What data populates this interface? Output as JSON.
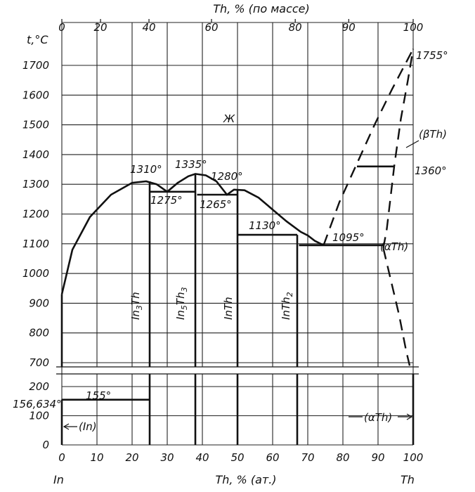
{
  "chart_data": {
    "type": "line",
    "top_axis": {
      "title": "Th, % (по массе)",
      "ticks": [
        0,
        20,
        40,
        60,
        80,
        90,
        100
      ]
    },
    "bottom_axis": {
      "title": "Th, % (ат.)",
      "ticks": [
        0,
        10,
        20,
        30,
        40,
        50,
        60,
        70,
        80,
        90,
        100
      ],
      "left_end_label": "In",
      "right_end_label": "Th"
    },
    "y_axis": {
      "title": "t,°C",
      "upper_ticks": [
        700,
        800,
        900,
        1000,
        1100,
        1200,
        1300,
        1400,
        1500,
        1600,
        1700
      ],
      "lower_ticks": [
        0,
        100,
        200
      ],
      "upper_range": [
        680,
        1760
      ],
      "lower_range": [
        0,
        250
      ]
    },
    "grid": true,
    "liquidus": [
      {
        "name": "",
        "style": "solid",
        "points": [
          [
            0,
            930
          ],
          [
            3,
            1080
          ],
          [
            8,
            1190
          ],
          [
            14,
            1265
          ],
          [
            20,
            1305
          ],
          [
            24,
            1310
          ],
          [
            27,
            1300
          ],
          [
            30,
            1275
          ],
          [
            33,
            1305
          ],
          [
            36,
            1327
          ],
          [
            38,
            1335
          ],
          [
            41,
            1330
          ],
          [
            44,
            1310
          ],
          [
            47,
            1265
          ],
          [
            49,
            1282
          ],
          [
            52,
            1280
          ],
          [
            56,
            1255
          ],
          [
            60,
            1215
          ],
          [
            64,
            1175
          ],
          [
            68,
            1140
          ],
          [
            70,
            1128
          ],
          [
            72,
            1110
          ],
          [
            74.5,
            1095
          ]
        ]
      },
      {
        "name": "",
        "style": "dashed",
        "points": [
          [
            74.5,
            1095
          ],
          [
            79,
            1240
          ],
          [
            84,
            1370
          ],
          [
            89,
            1500
          ],
          [
            94,
            1620
          ],
          [
            100,
            1755
          ]
        ]
      },
      {
        "name": "",
        "style": "dashed",
        "points": [
          [
            91.5,
            1085
          ],
          [
            92.5,
            1150
          ],
          [
            93.5,
            1250
          ],
          [
            94.6,
            1360
          ],
          [
            96.5,
            1520
          ],
          [
            98.5,
            1650
          ],
          [
            100,
            1755
          ]
        ]
      },
      {
        "name": "",
        "style": "dashed",
        "points": [
          [
            91.5,
            1085
          ],
          [
            94,
            960
          ],
          [
            96,
            860
          ],
          [
            98,
            740
          ],
          [
            99,
            690
          ]
        ]
      }
    ],
    "isotherms": [
      {
        "label": "1275°",
        "temperature": 1275,
        "x_range": [
          25,
          38
        ]
      },
      {
        "label": "1265°",
        "temperature": 1265,
        "x_range": [
          38.5,
          50
        ]
      },
      {
        "label": "1130°",
        "temperature": 1130,
        "x_range": [
          50,
          67
        ]
      },
      {
        "label": "1095°",
        "temperature": 1095,
        "x_range": [
          67.5,
          91.5
        ]
      },
      {
        "label": "1360°",
        "temperature": 1360,
        "x_range": [
          84,
          94.6
        ]
      },
      {
        "label": "155°",
        "temperature": 155,
        "x_range": [
          0,
          25
        ]
      }
    ],
    "compounds": [
      {
        "name": "In3Th",
        "x": 25,
        "melting_label": "1310°",
        "melting_point": 1310
      },
      {
        "name": "In5Th3",
        "x": 38,
        "melting_label": "1335°",
        "melting_point": 1335
      },
      {
        "name": "InTh",
        "x": 50,
        "melting_label": "1280°",
        "melting_point": 1280
      },
      {
        "name": "InTh2",
        "x": 67,
        "melting_label": "",
        "melting_point": 1130
      }
    ],
    "annotations": {
      "liquid_region": "Ж",
      "beta_th": "(βTh)",
      "alpha_th_upper": "(αTh)",
      "alpha_th_lower": "(αTh)",
      "in_solid": "(In)",
      "th_melting": "1755°",
      "in_melting": "156,634°"
    }
  }
}
